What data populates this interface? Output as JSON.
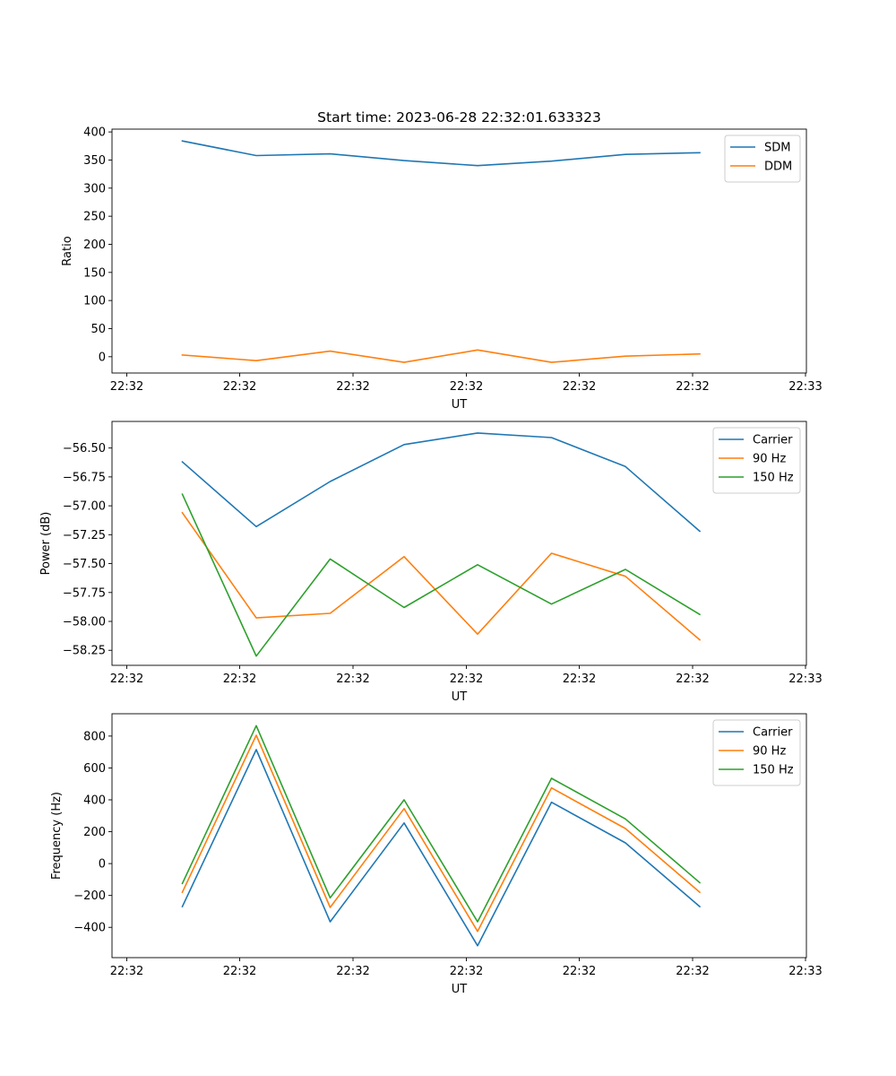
{
  "figure": {
    "title": "Start time: 2023-06-28 22:32:01.633323"
  },
  "chart_data": [
    {
      "type": "line",
      "xlabel": "UT",
      "ylabel": "Ratio",
      "x_tick_labels": [
        "22:32",
        "22:32",
        "22:32",
        "22:32",
        "22:32",
        "22:32",
        "22:33"
      ],
      "ylim": [
        -29,
        405
      ],
      "y_ticks": [
        0,
        50,
        100,
        150,
        200,
        250,
        300,
        350,
        400
      ],
      "legend_position": "upper right",
      "series": [
        {
          "name": "SDM",
          "color": "#1f77b4",
          "values": [
            384,
            358,
            361,
            349,
            340,
            348,
            360,
            363
          ]
        },
        {
          "name": "DDM",
          "color": "#ff7f0e",
          "values": [
            3,
            -7,
            10,
            -10,
            12,
            -10,
            1,
            5
          ]
        }
      ]
    },
    {
      "type": "line",
      "xlabel": "UT",
      "ylabel": "Power (dB)",
      "x_tick_labels": [
        "22:32",
        "22:32",
        "22:32",
        "22:32",
        "22:32",
        "22:32",
        "22:33"
      ],
      "ylim": [
        -58.38,
        -56.27
      ],
      "y_ticks": [
        -56.5,
        -56.75,
        -57.0,
        -57.25,
        -57.5,
        -57.75,
        -58.0,
        -58.25
      ],
      "y_tick_labels": [
        "−56.50",
        "−56.75",
        "−57.00",
        "−57.25",
        "−57.50",
        "−57.75",
        "−58.00",
        "−58.25"
      ],
      "legend_position": "upper right",
      "series": [
        {
          "name": "Carrier",
          "color": "#1f77b4",
          "values": [
            -56.62,
            -57.18,
            -56.79,
            -56.47,
            -56.37,
            -56.41,
            -56.66,
            -57.22
          ]
        },
        {
          "name": "90 Hz",
          "color": "#ff7f0e",
          "values": [
            -57.06,
            -57.97,
            -57.93,
            -57.44,
            -58.11,
            -57.41,
            -57.61,
            -58.16
          ]
        },
        {
          "name": "150 Hz",
          "color": "#2ca02c",
          "values": [
            -56.9,
            -58.3,
            -57.46,
            -57.88,
            -57.51,
            -57.85,
            -57.55,
            -57.94
          ]
        }
      ]
    },
    {
      "type": "line",
      "xlabel": "UT",
      "ylabel": "Frequency (Hz)",
      "x_tick_labels": [
        "22:32",
        "22:32",
        "22:32",
        "22:32",
        "22:32",
        "22:32",
        "22:33"
      ],
      "ylim": [
        -590,
        940
      ],
      "y_ticks": [
        -400,
        -200,
        0,
        200,
        400,
        600,
        800
      ],
      "y_tick_labels": [
        "−400",
        "−200",
        "0",
        "200",
        "400",
        "600",
        "800"
      ],
      "legend_position": "upper right",
      "series": [
        {
          "name": "Carrier",
          "color": "#1f77b4",
          "values": [
            -270,
            715,
            -365,
            255,
            -515,
            385,
            130,
            -270
          ]
        },
        {
          "name": "90 Hz",
          "color": "#ff7f0e",
          "values": [
            -180,
            805,
            -275,
            345,
            -425,
            475,
            220,
            -180
          ]
        },
        {
          "name": "150 Hz",
          "color": "#2ca02c",
          "values": [
            -125,
            865,
            -215,
            400,
            -365,
            535,
            280,
            -120
          ]
        }
      ]
    }
  ]
}
